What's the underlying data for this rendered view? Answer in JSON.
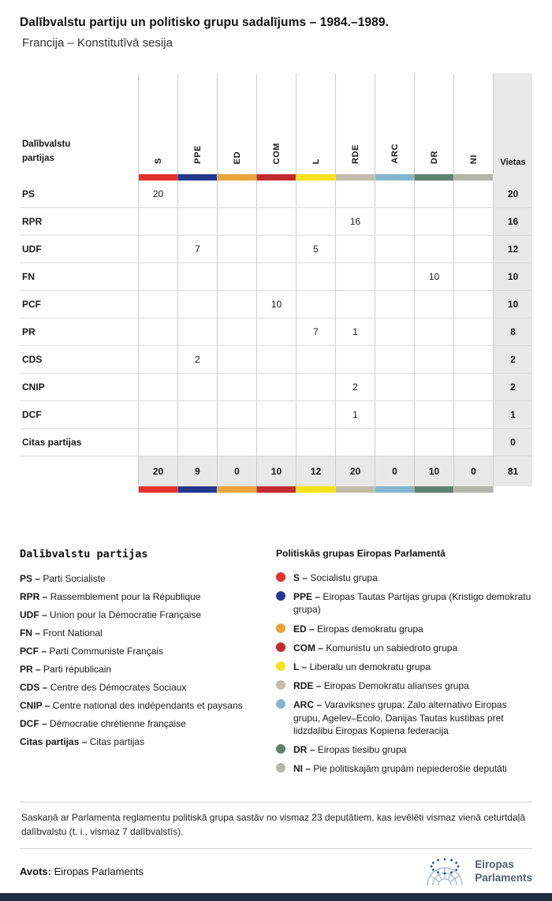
{
  "chart_data": {
    "type": "table",
    "title": "Dalībvalstu partiju un politisko grupu sadalījums – 1984.–1989.",
    "subtitle": "Francija – Konstitutīvā sesija",
    "row_header": "Dalībvalstu partijas",
    "seats_header": "Vietas",
    "groups": [
      {
        "code": "S",
        "color": "#e63329"
      },
      {
        "code": "PPE",
        "color": "#24398c"
      },
      {
        "code": "ED",
        "color": "#eba33c"
      },
      {
        "code": "COM",
        "color": "#c12b2f"
      },
      {
        "code": "L",
        "color": "#f6e21c"
      },
      {
        "code": "RDE",
        "color": "#c6bcab"
      },
      {
        "code": "ARC",
        "color": "#85b5ce"
      },
      {
        "code": "DR",
        "color": "#5f8172"
      },
      {
        "code": "NI",
        "color": "#b3b4ac"
      }
    ],
    "rows": [
      {
        "party": "PS",
        "values": [
          "20",
          "",
          "",
          "",
          "",
          "",
          "",
          "",
          ""
        ],
        "seats": "20"
      },
      {
        "party": "RPR",
        "values": [
          "",
          "",
          "",
          "",
          "",
          "16",
          "",
          "",
          ""
        ],
        "seats": "16"
      },
      {
        "party": "UDF",
        "values": [
          "",
          "7",
          "",
          "",
          "5",
          "",
          "",
          "",
          ""
        ],
        "seats": "12"
      },
      {
        "party": "FN",
        "values": [
          "",
          "",
          "",
          "",
          "",
          "",
          "",
          "10",
          ""
        ],
        "seats": "10"
      },
      {
        "party": "PCF",
        "values": [
          "",
          "",
          "",
          "10",
          "",
          "",
          "",
          "",
          ""
        ],
        "seats": "10"
      },
      {
        "party": "PR",
        "values": [
          "",
          "",
          "",
          "",
          "7",
          "1",
          "",
          "",
          ""
        ],
        "seats": "8"
      },
      {
        "party": "CDS",
        "values": [
          "",
          "2",
          "",
          "",
          "",
          "",
          "",
          "",
          ""
        ],
        "seats": "2"
      },
      {
        "party": "CNIP",
        "values": [
          "",
          "",
          "",
          "",
          "",
          "2",
          "",
          "",
          ""
        ],
        "seats": "2"
      },
      {
        "party": "DCF",
        "values": [
          "",
          "",
          "",
          "",
          "",
          "1",
          "",
          "",
          ""
        ],
        "seats": "1"
      },
      {
        "party": "Citas partijas",
        "values": [
          "",
          "",
          "",
          "",
          "",
          "",
          "",
          "",
          ""
        ],
        "seats": "0"
      }
    ],
    "totals": {
      "values": [
        "20",
        "9",
        "0",
        "10",
        "12",
        "20",
        "0",
        "10",
        "0"
      ],
      "seats": "81"
    }
  },
  "party_legend": {
    "heading": "Dalībvalstu partijas",
    "separator": "–",
    "items": [
      {
        "code": "PS",
        "name": "Parti Socialiste"
      },
      {
        "code": "RPR",
        "name": "Rassemblement pour la République"
      },
      {
        "code": "UDF",
        "name": "Union pour la Démocratie Française"
      },
      {
        "code": "FN",
        "name": "Front National"
      },
      {
        "code": "PCF",
        "name": "Parti Communiste Français"
      },
      {
        "code": "PR",
        "name": "Parti républicain"
      },
      {
        "code": "CDS",
        "name": "Centre des Démocrates Sociaux"
      },
      {
        "code": "CNIP",
        "name": "Centre national des indépendants et paysans"
      },
      {
        "code": "DCF",
        "name": "Démocratie chrétienne française"
      },
      {
        "code": "Citas partijas",
        "name": "Citas partijas"
      }
    ]
  },
  "group_legend": {
    "heading": "Politiskās grupas Eiropas Parlamentā",
    "separator": "–",
    "items": [
      {
        "code": "S",
        "name": "Socialistu grupa"
      },
      {
        "code": "PPE",
        "name": "Eiropas Tautas Partijas grupa (Kristigo demokratu grupa)"
      },
      {
        "code": "ED",
        "name": "Eiropas demokratu grupa"
      },
      {
        "code": "COM",
        "name": "Komunistu un sabiedroto grupa"
      },
      {
        "code": "L",
        "name": "Liberalu un demokratu grupa"
      },
      {
        "code": "RDE",
        "name": "Eiropas Demokratu alianses grupa"
      },
      {
        "code": "ARC",
        "name": "Varaviksnes grupa: Zalo alternativo Eiropas grupu, Agelev–Ecolo, Danijas Tautas kustibas pret lidzdalibu Eiropas Kopiena federacija"
      },
      {
        "code": "DR",
        "name": "Eiropas tiesibu grupa"
      },
      {
        "code": "NI",
        "name": "Pie politiskajām grupām nepiederošie deputāti"
      }
    ]
  },
  "footnote": "Saskaņā ar Parlamenta reglamentu politiskā grupa sastāv no vismaz 23 deputātiem, kas ievēlēti vismaz vienā ceturtdaļā dalībvalstu (t. i., vismaz 7 dalībvalstīs).",
  "source": {
    "label": "Avots:",
    "value": "Eiropas Parlaments"
  },
  "logo": {
    "line1": "Eiropas",
    "line2": "Parlaments"
  }
}
